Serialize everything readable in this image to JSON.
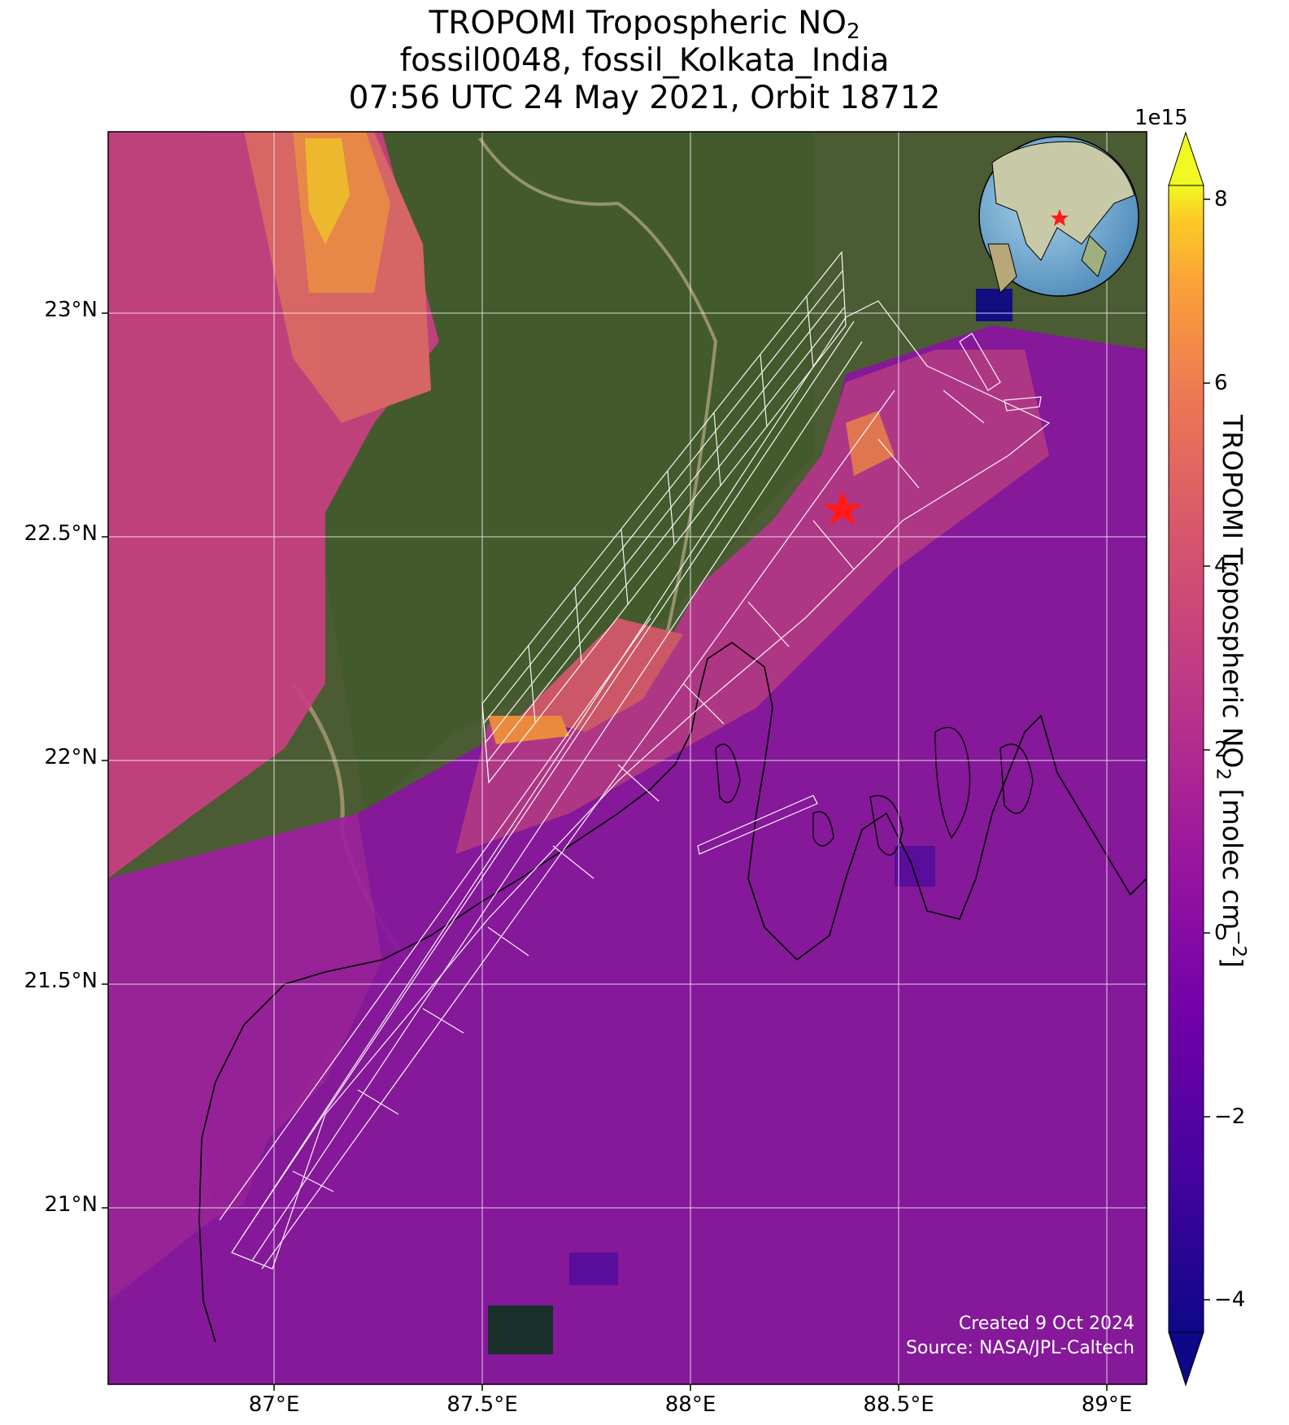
{
  "title": {
    "line1_prefix": "TROPOMI Tropospheric NO",
    "line1_sub": "2",
    "line2": "fossil0048, fossil_Kolkata_India",
    "line3": "07:56 UTC 24 May 2021, Orbit 18712"
  },
  "map": {
    "lon_range": [
      86.6,
      89.1
    ],
    "lat_range": [
      20.6,
      23.4
    ],
    "target": {
      "lon": 88.37,
      "lat": 22.57,
      "marker": "red-star"
    },
    "gridlines": true,
    "x_ticks": [
      "87°E",
      "87.5°E",
      "88°E",
      "88.5°E",
      "89°E"
    ],
    "y_ticks": [
      "21°N",
      "21.5°N",
      "22°N",
      "22.5°N",
      "23°N"
    ],
    "inset_globe": {
      "placement": "top-right",
      "marker": "red-star"
    }
  },
  "colorbar": {
    "colormap": "plasma",
    "range": [
      -4.5,
      8.5
    ],
    "ticks": [
      "8",
      "6",
      "4",
      "2",
      "0",
      "−2",
      "−4"
    ],
    "multiplier": "1e15",
    "label_prefix": "TROPOMI Tropospheric NO",
    "label_sub": "2",
    "label_suffix": " [molec cm",
    "label_sup": "−2",
    "label_end": "]",
    "extend": "both"
  },
  "footer": {
    "created": "Created 9 Oct 2024",
    "source": "Source: NASA/JPL-Caltech"
  },
  "colors": {
    "star": "#ff1a1a",
    "grid": "#ffffff",
    "coastline": "#000000",
    "footprint": "#ffffff"
  }
}
